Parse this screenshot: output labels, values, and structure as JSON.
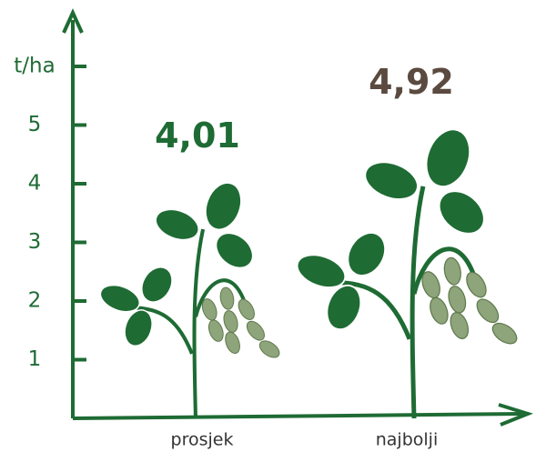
{
  "chart_data": {
    "type": "pictorial-bar",
    "categories": [
      "prosjek",
      "najbolji"
    ],
    "values": [
      4.01,
      4.92
    ],
    "value_labels": [
      "4,01",
      "4,92"
    ],
    "value_label_colors": [
      "#1e6b34",
      "#5b4a3f"
    ],
    "color": "#1e6b34",
    "ylim": [
      0,
      7
    ],
    "yticks": [
      1,
      2,
      3,
      4,
      5,
      {
        "value": 6,
        "label": "t/ha"
      }
    ]
  }
}
